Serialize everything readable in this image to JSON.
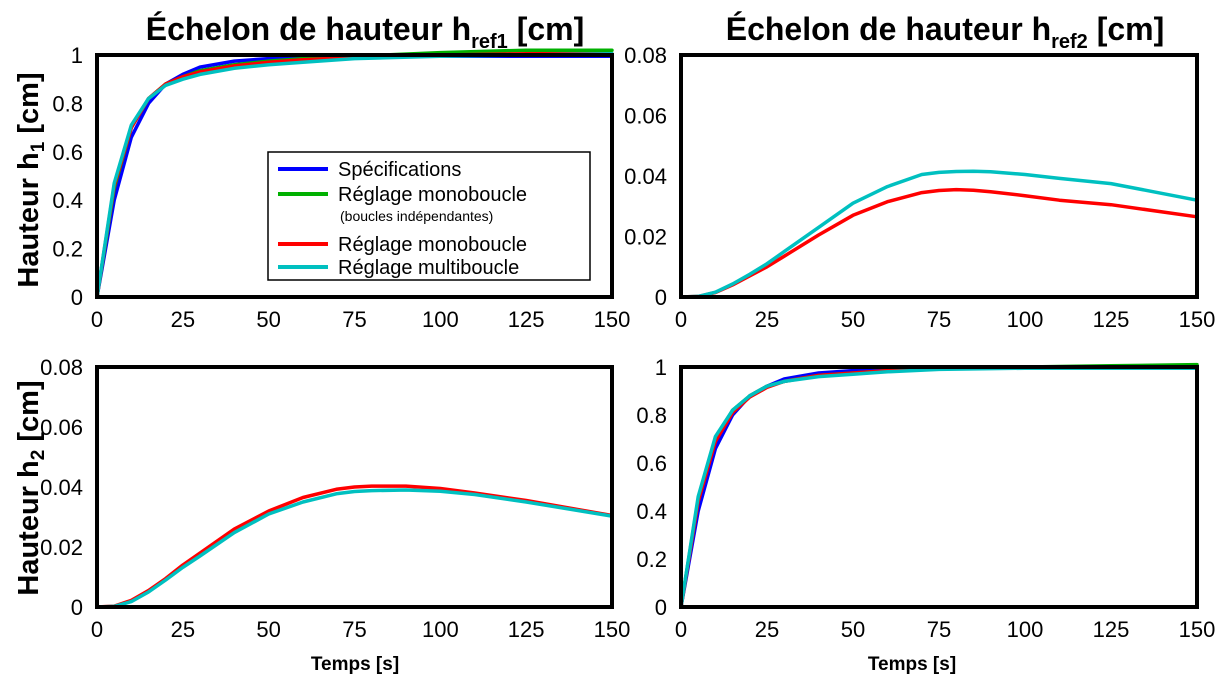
{
  "titles": {
    "col1": {
      "main": "Échelon de hauteur h",
      "sub": "ref1",
      "unit": " [cm]"
    },
    "col2": {
      "main": "Échelon de hauteur h",
      "sub": "ref2",
      "unit": " [cm]"
    }
  },
  "ylabels": {
    "h1": {
      "main": "Hauteur h",
      "sub": "1",
      "unit": " [cm]"
    },
    "h2": {
      "main": "Hauteur h",
      "sub": "2",
      "unit": " [cm]"
    }
  },
  "xlabel": "Temps [s]",
  "colors": {
    "specifications": "#0000ff",
    "mono_independent": "#00b000",
    "mono": "#ff0000",
    "multi": "#00c0c0"
  },
  "legend": {
    "items": [
      {
        "label": "Spécifications",
        "color": "#0000ff"
      },
      {
        "label": "Réglage monoboucle",
        "color": "#00b000",
        "note": "(boucles indépendantes)"
      },
      {
        "label": "Réglage monoboucle",
        "color": "#ff0000"
      },
      {
        "label": "Réglage multiboucle",
        "color": "#00c0c0"
      }
    ]
  },
  "chart_data": [
    {
      "type": "line",
      "id": "h1-ref1",
      "xlim": [
        0,
        150
      ],
      "ylim": [
        0,
        1
      ],
      "xticks": [
        "0",
        "25",
        "50",
        "75",
        "100",
        "125",
        "150"
      ],
      "yticks": [
        "0",
        "0.2",
        "0.4",
        "0.6",
        "0.8",
        "1"
      ],
      "x": [
        0,
        5,
        10,
        15,
        20,
        25,
        30,
        40,
        50,
        60,
        75,
        100,
        125,
        150
      ],
      "series": [
        {
          "name": "Spécifications",
          "color": "#0000ff",
          "values": [
            0,
            0.4,
            0.66,
            0.8,
            0.88,
            0.92,
            0.95,
            0.975,
            0.985,
            0.99,
            0.995,
            0.995,
            0.995,
            0.995
          ]
        },
        {
          "name": "Réglage monoboucle",
          "color": "#00b000",
          "values": [
            0,
            0.45,
            0.7,
            0.82,
            0.88,
            0.91,
            0.935,
            0.96,
            0.975,
            0.985,
            0.995,
            1.01,
            1.02,
            1.02
          ]
        },
        {
          "name": "Réglage monoboucle",
          "color": "#ff0000",
          "values": [
            0,
            0.46,
            0.7,
            0.82,
            0.88,
            0.91,
            0.93,
            0.955,
            0.97,
            0.98,
            0.99,
            1.0,
            1.005,
            1.005
          ]
        },
        {
          "name": "Réglage multiboucle",
          "color": "#00c0c0",
          "values": [
            0,
            0.47,
            0.71,
            0.82,
            0.875,
            0.9,
            0.92,
            0.945,
            0.96,
            0.97,
            0.985,
            0.995,
            1.0,
            1.005
          ]
        }
      ]
    },
    {
      "type": "line",
      "id": "h1-ref2",
      "xlim": [
        0,
        150
      ],
      "ylim": [
        0,
        0.08
      ],
      "xticks": [
        "0",
        "25",
        "50",
        "75",
        "100",
        "125",
        "150"
      ],
      "yticks": [
        "0",
        "0.02",
        "0.04",
        "0.06",
        "0.08"
      ],
      "x": [
        0,
        5,
        10,
        15,
        20,
        25,
        30,
        40,
        50,
        60,
        70,
        75,
        80,
        85,
        90,
        100,
        110,
        125,
        150
      ],
      "series": [
        {
          "name": "Spécifications",
          "color": "#0000ff",
          "values": [
            0,
            0,
            0,
            0,
            0,
            0,
            0,
            0,
            0,
            0,
            0,
            0,
            0,
            0,
            0,
            0,
            0,
            0,
            0
          ]
        },
        {
          "name": "Réglage monoboucle",
          "color": "#ff0000",
          "values": [
            0,
            0.0002,
            0.0015,
            0.004,
            0.007,
            0.01,
            0.0135,
            0.0205,
            0.027,
            0.0315,
            0.0345,
            0.0352,
            0.0355,
            0.0353,
            0.0348,
            0.0335,
            0.032,
            0.0305,
            0.0265
          ]
        },
        {
          "name": "Réglage multiboucle",
          "color": "#00c0c0",
          "values": [
            0,
            0.0002,
            0.0016,
            0.0043,
            0.0075,
            0.011,
            0.015,
            0.023,
            0.031,
            0.0365,
            0.0405,
            0.0412,
            0.0415,
            0.0416,
            0.0414,
            0.0405,
            0.0392,
            0.0375,
            0.032
          ]
        }
      ]
    },
    {
      "type": "line",
      "id": "h2-ref1",
      "xlim": [
        0,
        150
      ],
      "ylim": [
        0,
        0.08
      ],
      "xticks": [
        "0",
        "25",
        "50",
        "75",
        "100",
        "125",
        "150"
      ],
      "yticks": [
        "0",
        "0.02",
        "0.04",
        "0.06",
        "0.08"
      ],
      "x": [
        0,
        5,
        10,
        15,
        20,
        25,
        30,
        40,
        50,
        60,
        70,
        75,
        80,
        90,
        100,
        110,
        125,
        150
      ],
      "series": [
        {
          "name": "Spécifications",
          "color": "#0000ff",
          "values": [
            0,
            0,
            0,
            0,
            0,
            0,
            0,
            0,
            0,
            0,
            0,
            0,
            0,
            0,
            0,
            0,
            0,
            0
          ]
        },
        {
          "name": "Réglage monoboucle",
          "color": "#ff0000",
          "values": [
            0,
            0.0003,
            0.0022,
            0.0055,
            0.0095,
            0.014,
            0.018,
            0.026,
            0.032,
            0.0365,
            0.0393,
            0.04,
            0.0403,
            0.0403,
            0.0395,
            0.038,
            0.0355,
            0.0305
          ]
        },
        {
          "name": "Réglage multiboucle",
          "color": "#00c0c0",
          "values": [
            0,
            0.0002,
            0.0018,
            0.005,
            0.009,
            0.0132,
            0.017,
            0.0248,
            0.031,
            0.035,
            0.0378,
            0.0385,
            0.0388,
            0.039,
            0.0386,
            0.0375,
            0.035,
            0.0303
          ]
        }
      ]
    },
    {
      "type": "line",
      "id": "h2-ref2",
      "xlim": [
        0,
        150
      ],
      "ylim": [
        0,
        1
      ],
      "xticks": [
        "0",
        "25",
        "50",
        "75",
        "100",
        "125",
        "150"
      ],
      "yticks": [
        "0",
        "0.2",
        "0.4",
        "0.6",
        "0.8",
        "1"
      ],
      "x": [
        0,
        5,
        10,
        15,
        20,
        25,
        30,
        40,
        50,
        60,
        75,
        100,
        125,
        150
      ],
      "series": [
        {
          "name": "Spécifications",
          "color": "#0000ff",
          "values": [
            0,
            0.4,
            0.66,
            0.8,
            0.88,
            0.92,
            0.95,
            0.975,
            0.985,
            0.99,
            0.995,
            0.995,
            0.995,
            0.995
          ]
        },
        {
          "name": "Réglage monoboucle",
          "color": "#00b000",
          "values": [
            0,
            0.45,
            0.7,
            0.82,
            0.88,
            0.92,
            0.94,
            0.965,
            0.975,
            0.985,
            0.995,
            1.0,
            1.005,
            1.01
          ]
        },
        {
          "name": "Réglage monoboucle",
          "color": "#ff0000",
          "values": [
            0,
            0.44,
            0.69,
            0.81,
            0.875,
            0.915,
            0.94,
            0.965,
            0.975,
            0.985,
            0.995,
            1.0,
            1.0,
            1.0
          ]
        },
        {
          "name": "Réglage multiboucle",
          "color": "#00c0c0",
          "values": [
            0,
            0.46,
            0.71,
            0.82,
            0.88,
            0.92,
            0.94,
            0.96,
            0.97,
            0.98,
            0.99,
            0.995,
            0.995,
            0.995
          ]
        }
      ]
    }
  ]
}
